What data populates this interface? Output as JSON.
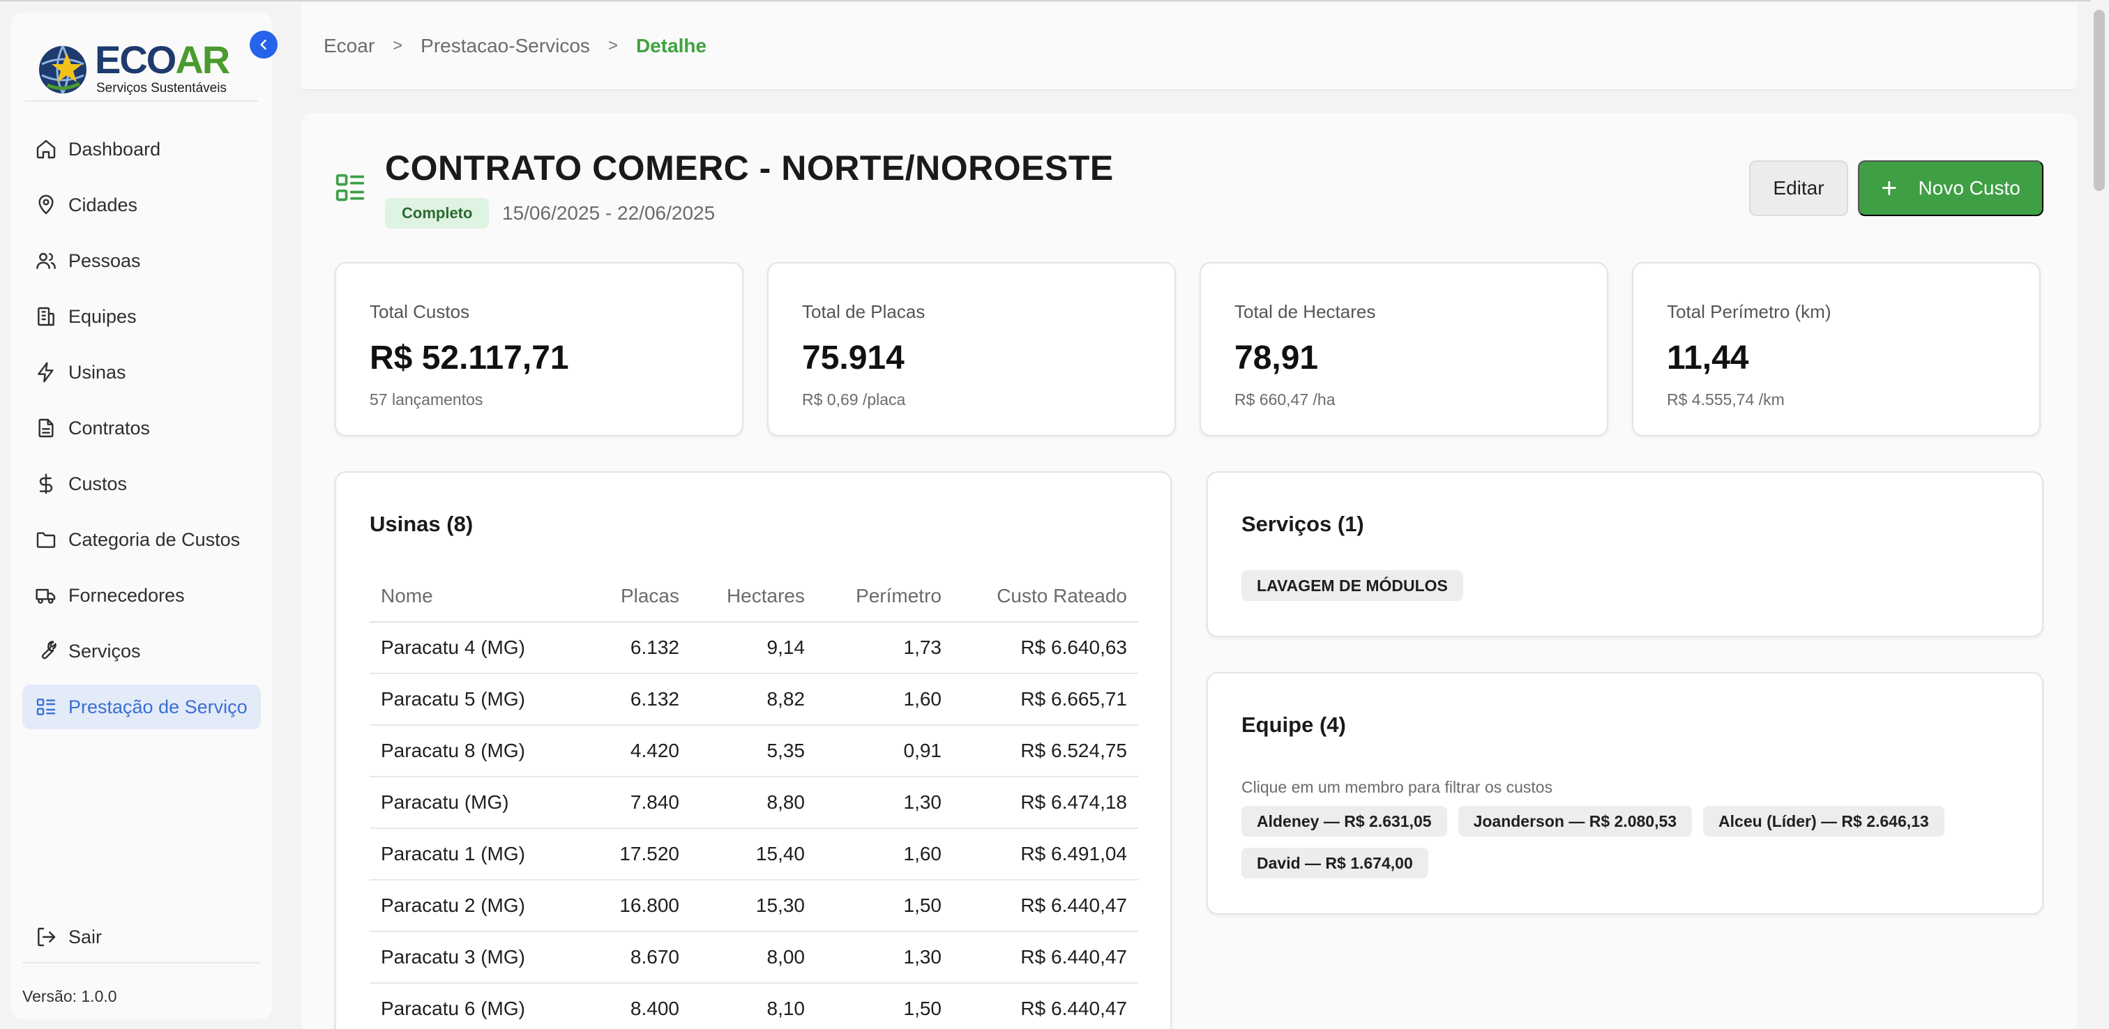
{
  "brand": {
    "name_eco": "ECO",
    "name_ar": "AR",
    "tagline": "Serviços Sustentáveis",
    "accent_blue": "#1e3a6e",
    "accent_green": "#4a9b2e"
  },
  "sidebar": {
    "items": [
      {
        "label": "Dashboard",
        "icon": "home-icon"
      },
      {
        "label": "Cidades",
        "icon": "map-pin-icon"
      },
      {
        "label": "Pessoas",
        "icon": "users-icon"
      },
      {
        "label": "Equipes",
        "icon": "building-icon"
      },
      {
        "label": "Usinas",
        "icon": "zap-icon"
      },
      {
        "label": "Contratos",
        "icon": "document-icon"
      },
      {
        "label": "Custos",
        "icon": "dollar-icon"
      },
      {
        "label": "Categoria de Custos",
        "icon": "folder-icon"
      },
      {
        "label": "Fornecedores",
        "icon": "truck-icon"
      },
      {
        "label": "Serviços",
        "icon": "wrench-icon"
      },
      {
        "label": "Prestação de Serviço",
        "icon": "list-icon",
        "active": true
      }
    ],
    "logout_label": "Sair",
    "version": "Versão: 1.0.0"
  },
  "breadcrumb": [
    "Ecoar",
    "Prestacao-Servicos",
    "Detalhe"
  ],
  "page": {
    "title": "CONTRATO COMERC - NORTE/NOROESTE",
    "status": "Completo",
    "date_range": "15/06/2025 - 22/06/2025",
    "edit_label": "Editar",
    "new_cost_label": "Novo Custo"
  },
  "stats": [
    {
      "label": "Total Custos",
      "value": "R$ 52.117,71",
      "sub": "57 lançamentos"
    },
    {
      "label": "Total de Placas",
      "value": "75.914",
      "sub": "R$ 0,69 /placa"
    },
    {
      "label": "Total de Hectares",
      "value": "78,91",
      "sub": "R$ 660,47 /ha"
    },
    {
      "label": "Total Perímetro (km)",
      "value": "11,44",
      "sub": "R$ 4.555,74 /km"
    }
  ],
  "usinas": {
    "title": "Usinas (8)",
    "columns": [
      "Nome",
      "Placas",
      "Hectares",
      "Perímetro",
      "Custo Rateado"
    ],
    "rows": [
      [
        "Paracatu 4 (MG)",
        "6.132",
        "9,14",
        "1,73",
        "R$ 6.640,63"
      ],
      [
        "Paracatu 5 (MG)",
        "6.132",
        "8,82",
        "1,60",
        "R$ 6.665,71"
      ],
      [
        "Paracatu 8 (MG)",
        "4.420",
        "5,35",
        "0,91",
        "R$ 6.524,75"
      ],
      [
        "Paracatu (MG)",
        "7.840",
        "8,80",
        "1,30",
        "R$ 6.474,18"
      ],
      [
        "Paracatu 1 (MG)",
        "17.520",
        "15,40",
        "1,60",
        "R$ 6.491,04"
      ],
      [
        "Paracatu 2 (MG)",
        "16.800",
        "15,30",
        "1,50",
        "R$ 6.440,47"
      ],
      [
        "Paracatu 3 (MG)",
        "8.670",
        "8,00",
        "1,30",
        "R$ 6.440,47"
      ],
      [
        "Paracatu 6 (MG)",
        "8.400",
        "8,10",
        "1,50",
        "R$ 6.440,47"
      ]
    ]
  },
  "servicos": {
    "title": "Serviços (1)",
    "items": [
      "LAVAGEM DE MÓDULOS"
    ]
  },
  "equipe": {
    "title": "Equipe (4)",
    "hint": "Clique em um membro para filtrar os custos",
    "members": [
      "Aldeney — R$ 2.631,05",
      "Joanderson — R$ 2.080,53",
      "Alceu (Líder) — R$ 2.646,13",
      "David — R$ 1.674,00"
    ]
  }
}
